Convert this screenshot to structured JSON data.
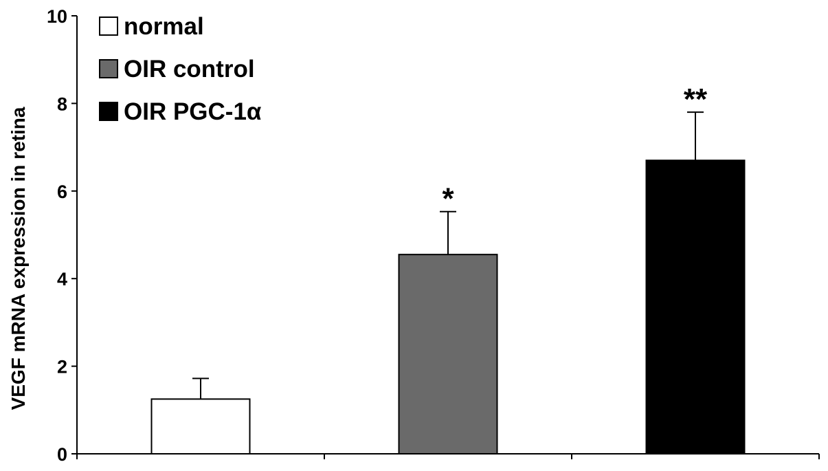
{
  "chart_data": {
    "type": "bar",
    "ylabel": "VEGF mRNA expression in retina",
    "xlabel": "",
    "ylim": [
      0,
      10
    ],
    "yticks": [
      0,
      2,
      4,
      6,
      8,
      10
    ],
    "grid": false,
    "legend_position": "top-left",
    "series": [
      {
        "name": "normal",
        "value": 1.25,
        "error": 0.47,
        "color": "#ffffff",
        "annotation": ""
      },
      {
        "name": "OIR control",
        "value": 4.55,
        "error": 0.98,
        "color": "#6a6a6a",
        "annotation": "*"
      },
      {
        "name": "OIR PGC-1α",
        "value": 6.7,
        "error": 1.1,
        "color": "#000000",
        "annotation": "**"
      }
    ]
  }
}
